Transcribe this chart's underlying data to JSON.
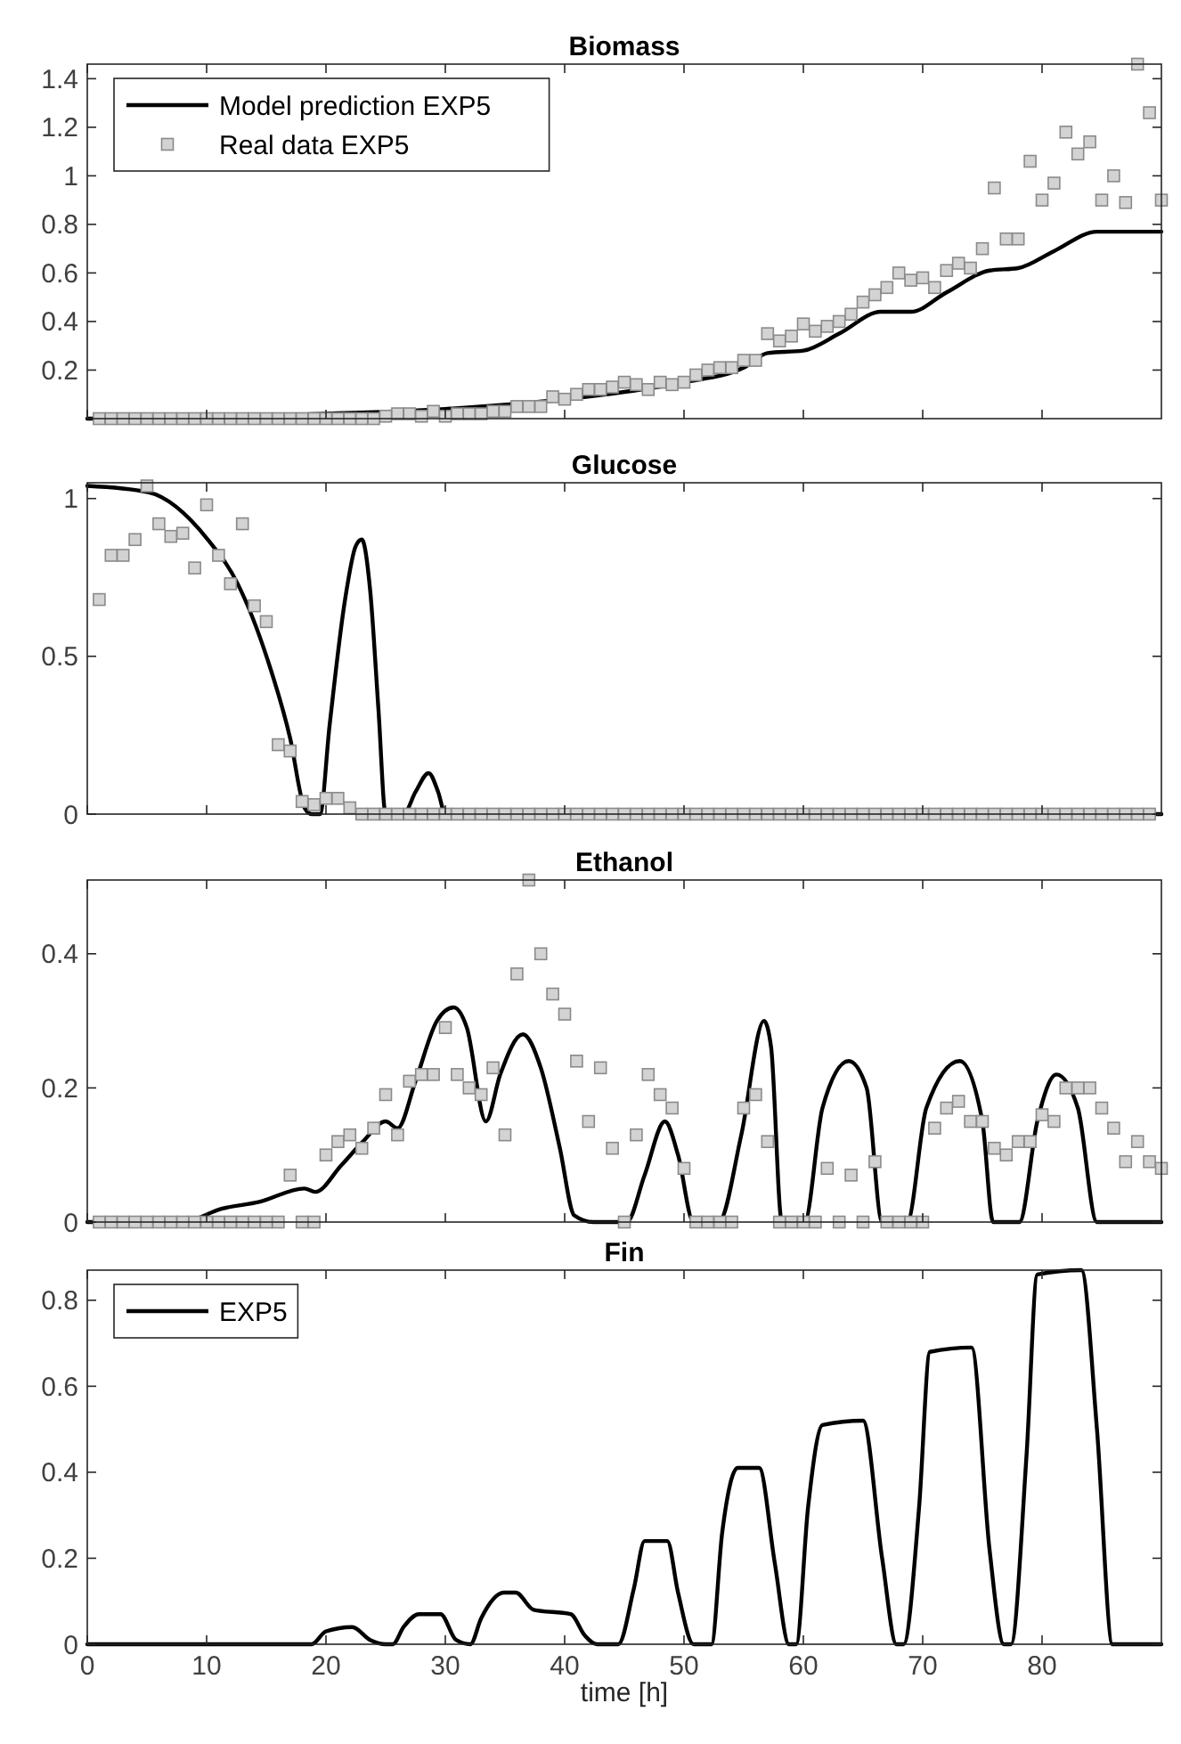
{
  "chart_data": [
    {
      "type": "line",
      "title": "Biomass",
      "xlim": [
        0,
        90
      ],
      "xticks": [
        0,
        10,
        20,
        30,
        40,
        50,
        60,
        70,
        80
      ],
      "ylim": [
        0,
        1.46
      ],
      "yticks": [
        0.2,
        0.4,
        0.6,
        0.8,
        1,
        1.2,
        1.4
      ],
      "tick_labels": "y",
      "legend": "top left",
      "x": [
        1,
        2,
        3,
        4,
        5,
        6,
        7,
        8,
        9,
        10,
        11,
        12,
        13,
        14,
        15,
        16,
        17,
        18,
        19,
        20,
        21,
        22,
        23,
        24,
        25,
        26,
        27,
        28,
        29,
        30,
        31,
        32,
        33,
        34,
        35,
        36,
        37,
        38,
        39,
        40,
        41,
        42,
        43,
        44,
        45,
        46,
        47,
        48,
        49,
        50,
        51,
        52,
        53,
        54,
        55,
        56,
        57,
        58,
        59,
        60,
        61,
        62,
        63,
        64,
        65,
        66,
        67,
        68,
        69,
        70,
        71,
        72,
        73,
        74,
        75,
        76,
        77,
        78,
        79,
        80,
        81,
        82,
        83,
        84,
        85,
        86,
        87,
        88,
        89,
        90
      ],
      "series": [
        {
          "name": "Model prediction EXP5",
          "color": "#000000",
          "line_style": "solid",
          "x": [
            0,
            10,
            20,
            30,
            40,
            45,
            50,
            55,
            57,
            60,
            63,
            66.5,
            69,
            72,
            75.6,
            78,
            81,
            84.6,
            90
          ],
          "values": [
            0,
            0.005,
            0.02,
            0.04,
            0.08,
            0.11,
            0.15,
            0.21,
            0.27,
            0.28,
            0.35,
            0.44,
            0.44,
            0.52,
            0.61,
            0.62,
            0.69,
            0.77,
            0.77
          ]
        },
        {
          "name": "Real data EXP5",
          "type": "scatter",
          "marker": "square",
          "color": "#d3d3d3",
          "values": [
            0,
            0,
            0,
            0,
            0,
            0,
            0,
            0,
            0,
            0,
            0,
            0,
            0,
            0,
            0,
            0,
            0,
            0,
            0,
            0,
            0,
            0,
            0,
            0,
            0.01,
            0.02,
            0.02,
            0.01,
            0.03,
            0.01,
            0.02,
            0.02,
            0.02,
            0.03,
            0.03,
            0.05,
            0.05,
            0.05,
            0.09,
            0.08,
            0.1,
            0.12,
            0.12,
            0.13,
            0.15,
            0.14,
            0.12,
            0.15,
            0.14,
            0.15,
            0.18,
            0.2,
            0.21,
            0.21,
            0.24,
            0.24,
            0.35,
            0.32,
            0.34,
            0.39,
            0.36,
            0.38,
            0.4,
            0.43,
            0.48,
            0.51,
            0.54,
            0.6,
            0.57,
            0.58,
            0.54,
            0.61,
            0.64,
            0.62,
            0.7,
            0.95,
            0.74,
            0.74,
            1.06,
            0.9,
            0.97,
            1.18,
            1.09,
            1.14,
            0.9,
            1.0,
            0.89,
            1.46,
            1.26,
            0.9
          ]
        }
      ]
    },
    {
      "type": "line",
      "title": "Glucose",
      "xlim": [
        0,
        90
      ],
      "xticks": [
        0,
        10,
        20,
        30,
        40,
        50,
        60,
        70,
        80
      ],
      "ylim": [
        0,
        1.05
      ],
      "yticks": [
        0,
        0.5,
        1
      ],
      "tick_labels": "y",
      "x": [
        1,
        2,
        3,
        4,
        5,
        6,
        7,
        8,
        9,
        10,
        11,
        12,
        13,
        14,
        15,
        16,
        17,
        18,
        19,
        20,
        21,
        22,
        23,
        24,
        25,
        26,
        27,
        28,
        29,
        30,
        31,
        32,
        33,
        34,
        35,
        36,
        37,
        38,
        39,
        40,
        41,
        42,
        43,
        44,
        45,
        46,
        47,
        48,
        49,
        50,
        51,
        52,
        53,
        54,
        55,
        56,
        57,
        58,
        59,
        60,
        61,
        62,
        63,
        64,
        65,
        66,
        67,
        68,
        69,
        70,
        71,
        72,
        73,
        74,
        75,
        76,
        77,
        78,
        79,
        80,
        81,
        82,
        83,
        84,
        85,
        86,
        87,
        88,
        89
      ],
      "series": [
        {
          "color": "#000000",
          "line_style": "solid",
          "x": [
            0,
            5.1,
            10.1,
            12.6,
            15.1,
            17,
            18.2,
            18.8,
            19.5,
            20.3,
            21.6,
            22.5,
            23,
            23.7,
            24.4,
            25,
            26.5,
            27.5,
            28.6,
            29.4,
            30,
            90
          ],
          "values": [
            1.04,
            1.02,
            0.87,
            0.73,
            0.49,
            0.24,
            0.02,
            0,
            0,
            0.28,
            0.68,
            0.85,
            0.87,
            0.71,
            0.33,
            0,
            0,
            0.07,
            0.13,
            0.07,
            0,
            0
          ]
        },
        {
          "type": "scatter",
          "marker": "square",
          "color": "#d3d3d3",
          "values": [
            0.68,
            0.82,
            0.82,
            0.87,
            1.04,
            0.92,
            0.88,
            0.89,
            0.78,
            0.98,
            0.82,
            0.73,
            0.92,
            0.66,
            0.61,
            0.22,
            0.2,
            0.04,
            0.03,
            0.05,
            0.05,
            0.02,
            0,
            0,
            0,
            0,
            0,
            0,
            0,
            0,
            0,
            0,
            0,
            0,
            0,
            0,
            0,
            0,
            0,
            0,
            0,
            0,
            0,
            0,
            0,
            0,
            0,
            0,
            0,
            0,
            0,
            0,
            0,
            0,
            0,
            0,
            0,
            0,
            0,
            0,
            0,
            0,
            0,
            0,
            0,
            0,
            0,
            0,
            0,
            0,
            0,
            0,
            0,
            0,
            0,
            0,
            0,
            0,
            0,
            0,
            0,
            0,
            0,
            0,
            0,
            0,
            0,
            0,
            0
          ]
        }
      ]
    },
    {
      "type": "line",
      "title": "Ethanol",
      "xlim": [
        0,
        90
      ],
      "xticks": [
        0,
        10,
        20,
        30,
        40,
        50,
        60,
        70,
        80
      ],
      "ylim": [
        0,
        0.51
      ],
      "yticks": [
        0,
        0.2,
        0.4
      ],
      "tick_labels": "y",
      "x": [
        1,
        2,
        3,
        4,
        5,
        6,
        7,
        8,
        9,
        10,
        11,
        12,
        13,
        14,
        15,
        16,
        17,
        18,
        19,
        20,
        21,
        22,
        23,
        24,
        25,
        26,
        27,
        28,
        29,
        30,
        31,
        32,
        33,
        34,
        35,
        36,
        37,
        38,
        39,
        40,
        41,
        42,
        43,
        44,
        45,
        46,
        47,
        48,
        49,
        50,
        51,
        52,
        53,
        54,
        55,
        56,
        57,
        58,
        59,
        60,
        61,
        62,
        63,
        64,
        65,
        66,
        67,
        68,
        69,
        70,
        71,
        72,
        73,
        74,
        75,
        76,
        77,
        78,
        79,
        80,
        81,
        82,
        83,
        84,
        85,
        86,
        87,
        88,
        89,
        90
      ],
      "series": [
        {
          "color": "#000000",
          "line_style": "solid",
          "x": [
            0,
            8,
            11.3,
            14.4,
            18.2,
            19.1,
            21.3,
            23.1,
            25,
            26,
            27.5,
            29.3,
            30.7,
            31.8,
            33.4,
            34.6,
            36.5,
            38,
            39.6,
            40.8,
            42.4,
            45.2,
            46.7,
            48.4,
            49.5,
            50.8,
            52.9,
            54.8,
            56.7,
            57.3,
            58.2,
            60.1,
            61.6,
            63.8,
            65.3,
            66.6,
            68.7,
            70.3,
            73.1,
            75,
            75.9,
            78.1,
            79.6,
            81.2,
            83,
            84.6,
            90
          ],
          "values": [
            0,
            0,
            0.02,
            0.03,
            0.05,
            0.045,
            0.085,
            0.12,
            0.15,
            0.14,
            0.21,
            0.3,
            0.32,
            0.29,
            0.15,
            0.22,
            0.28,
            0.23,
            0.11,
            0.01,
            0,
            0,
            0.07,
            0.15,
            0.1,
            0,
            0,
            0.13,
            0.3,
            0.26,
            0,
            0,
            0.17,
            0.24,
            0.2,
            0,
            0,
            0.17,
            0.24,
            0.15,
            0,
            0,
            0.15,
            0.22,
            0.17,
            0,
            0
          ]
        },
        {
          "type": "scatter",
          "marker": "square",
          "color": "#d3d3d3",
          "values": [
            0,
            0,
            0,
            0,
            0,
            0,
            0,
            0,
            0,
            0,
            0,
            0,
            0,
            0,
            0,
            0,
            0.07,
            0,
            0,
            0.1,
            0.12,
            0.13,
            0.11,
            0.14,
            0.19,
            0.13,
            0.21,
            0.22,
            0.22,
            0.29,
            0.22,
            0.2,
            0.19,
            0.23,
            0.13,
            0.37,
            0.51,
            0.4,
            0.34,
            0.31,
            0.24,
            0.15,
            0.23,
            0.11,
            0,
            0.13,
            0.22,
            0.19,
            0.17,
            0.08,
            0,
            0,
            0,
            0,
            0.17,
            0.19,
            0.12,
            0,
            0,
            0,
            0,
            0.08,
            0,
            0.07,
            0,
            0.09,
            0,
            0,
            0,
            0,
            0.14,
            0.17,
            0.18,
            0.15,
            0.15,
            0.11,
            0.1,
            0.12,
            0.12,
            0.16,
            0.15,
            0.2,
            0.2,
            0.2,
            0.17,
            0.14,
            0.09,
            0.12,
            0.09,
            0.08
          ]
        }
      ]
    },
    {
      "type": "line",
      "title": "Fin",
      "xlabel": "time [h]",
      "xlim": [
        0,
        90
      ],
      "xticks": [
        0,
        10,
        20,
        30,
        40,
        50,
        60,
        70,
        80
      ],
      "ylim": [
        0,
        0.87
      ],
      "yticks": [
        0,
        0.2,
        0.4,
        0.6,
        0.8
      ],
      "legend": "top left",
      "series": [
        {
          "name": "EXP5",
          "color": "#000000",
          "line_style": "solid",
          "x": [
            0,
            18.8,
            20,
            22.2,
            23.7,
            25,
            25.6,
            26.5,
            27.8,
            29.6,
            30.9,
            32.1,
            33,
            34.9,
            35.9,
            37.4,
            40.5,
            41.7,
            42.7,
            44.5,
            45.8,
            46.7,
            48.6,
            49.5,
            50.8,
            52.3,
            53.2,
            54.5,
            56.3,
            57.6,
            58.8,
            59.4,
            60.4,
            61.6,
            65,
            66.6,
            67.8,
            68.4,
            69.7,
            70.6,
            74.1,
            75.6,
            76.8,
            77.4,
            78.7,
            79.6,
            83.3,
            84.6,
            85.9,
            90
          ],
          "values": [
            0,
            0,
            0.03,
            0.04,
            0.01,
            0,
            0,
            0.04,
            0.07,
            0.07,
            0.01,
            0,
            0.06,
            0.12,
            0.12,
            0.08,
            0.07,
            0.02,
            0,
            0,
            0.13,
            0.24,
            0.24,
            0.12,
            0,
            0,
            0.26,
            0.41,
            0.41,
            0.19,
            0,
            0,
            0.32,
            0.51,
            0.52,
            0.2,
            0,
            0,
            0.32,
            0.68,
            0.69,
            0.22,
            0,
            0,
            0.44,
            0.86,
            0.87,
            0.5,
            0,
            0
          ]
        }
      ]
    }
  ]
}
